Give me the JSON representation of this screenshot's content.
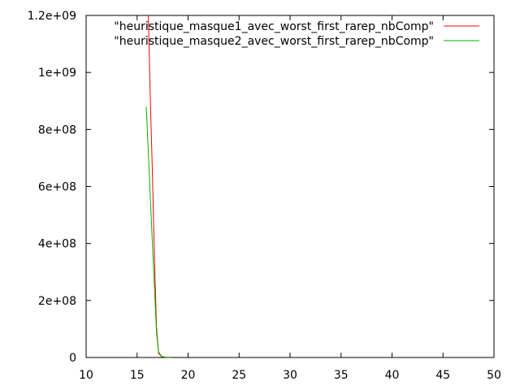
{
  "chart_data": {
    "type": "line",
    "title": "",
    "xlabel": "",
    "ylabel": "",
    "xlim": [
      10,
      50
    ],
    "ylim": [
      0,
      1200000000
    ],
    "x_ticks": [
      {
        "value": 10,
        "label": "10"
      },
      {
        "value": 15,
        "label": "15"
      },
      {
        "value": 20,
        "label": "20"
      },
      {
        "value": 25,
        "label": "25"
      },
      {
        "value": 30,
        "label": "30"
      },
      {
        "value": 35,
        "label": "35"
      },
      {
        "value": 40,
        "label": "40"
      },
      {
        "value": 45,
        "label": "45"
      },
      {
        "value": 50,
        "label": "50"
      }
    ],
    "y_ticks": [
      {
        "value": 0,
        "label": "0"
      },
      {
        "value": 200000000,
        "label": "2e+08"
      },
      {
        "value": 400000000,
        "label": "4e+08"
      },
      {
        "value": 600000000,
        "label": "6e+08"
      },
      {
        "value": 800000000,
        "label": "8e+08"
      },
      {
        "value": 1000000000,
        "label": "1e+09"
      },
      {
        "value": 1200000000,
        "label": "1.2e+09"
      }
    ],
    "grid": false,
    "legend_position": "top-right",
    "series": [
      {
        "name": "\"heuristique_masque1_avec_worst_first_rarep_nbComp\"",
        "color": "#ff0000",
        "x": [
          16.1,
          16.3,
          16.5,
          16.7,
          16.9,
          17.1,
          17.4,
          17.8,
          18.3
        ],
        "y": [
          1200000000,
          900000000,
          650000000,
          350000000,
          110000000,
          15000000,
          3000000,
          1000000,
          500000
        ]
      },
      {
        "name": "\"heuristique_masque2_avec_worst_first_rarep_nbComp\"",
        "color": "#00b000",
        "x": [
          15.9,
          16.1,
          16.3,
          16.5,
          16.7,
          16.9,
          17.1,
          17.4,
          17.8,
          18.3
        ],
        "y": [
          880000000,
          720000000,
          560000000,
          400000000,
          250000000,
          90000000,
          20000000,
          4000000,
          1000000,
          500000
        ]
      }
    ]
  }
}
